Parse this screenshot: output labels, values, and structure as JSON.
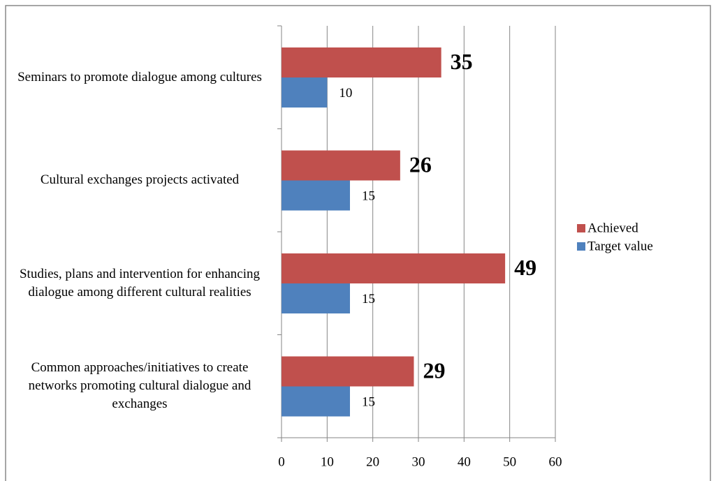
{
  "chart_data": {
    "type": "hbar",
    "categories": [
      "Seminars to promote dialogue among cultures",
      "Cultural exchanges  projects activated",
      "Studies, plans and intervention for enhancing dialogue among different cultural realities",
      "Common approaches/initiatives to create networks promoting cultural dialogue and exchanges"
    ],
    "series": [
      {
        "name": "Achieved",
        "color": "#c0504d",
        "values": [
          35,
          26,
          49,
          29
        ]
      },
      {
        "name": "Target value",
        "color": "#4f81bd",
        "values": [
          10,
          15,
          15,
          15
        ]
      }
    ],
    "xlim": [
      0,
      60
    ],
    "xticks": [
      0,
      10,
      20,
      30,
      40,
      50,
      60
    ],
    "grid": true,
    "legend": "right"
  }
}
